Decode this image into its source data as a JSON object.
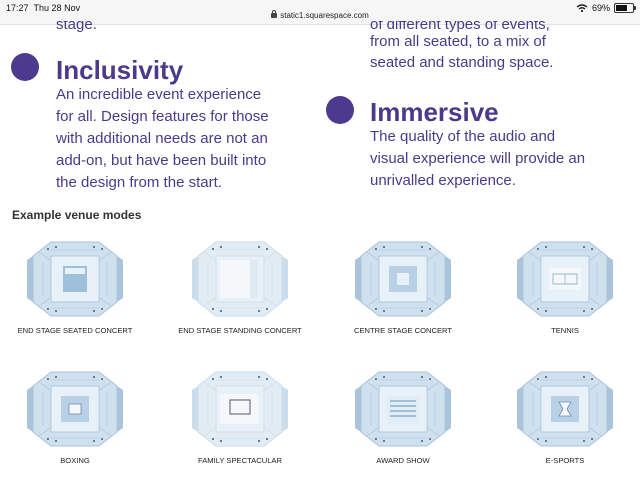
{
  "status_bar": {
    "time": "17:27",
    "date": "Thu 28 Nov",
    "url": "static1.squarespace.com",
    "battery": "69%",
    "battery_level": 0.69
  },
  "partial_top": {
    "left_line": "stage.",
    "right_line_1": "of different types of events,",
    "right_line_2": "from all seated, to a mix of",
    "right_line_3": "seated and standing space."
  },
  "features": [
    {
      "title": "Inclusivity",
      "lines": [
        "An incredible event experience",
        "for all. Design features for those",
        "with additional needs are not an",
        "add-on, but have been built into",
        "the design from the start."
      ]
    },
    {
      "title": "Immersive",
      "lines": [
        "The quality of the audio and",
        "visual experience will provide an",
        "unrivalled experience."
      ]
    }
  ],
  "modes_heading": "Example venue modes",
  "venue_modes": [
    {
      "label": "END STAGE SEATED CONCERT",
      "icon": "venue-plan-icon"
    },
    {
      "label": "END STAGE STANDING CONCERT",
      "icon": "venue-plan-icon"
    },
    {
      "label": "CENTRE STAGE CONCERT",
      "icon": "venue-plan-icon"
    },
    {
      "label": "TENNIS",
      "icon": "venue-plan-icon"
    },
    {
      "label": "BOXING",
      "icon": "venue-plan-icon"
    },
    {
      "label": "FAMILY SPECTACULAR",
      "icon": "venue-plan-icon"
    },
    {
      "label": "AWARD SHOW",
      "icon": "venue-plan-icon"
    },
    {
      "label": "E-SPORTS",
      "icon": "venue-plan-icon"
    }
  ],
  "colors": {
    "accent": "#4b3a8a",
    "seating": "#cfe0ee",
    "seating_dark": "#a9c4db"
  }
}
